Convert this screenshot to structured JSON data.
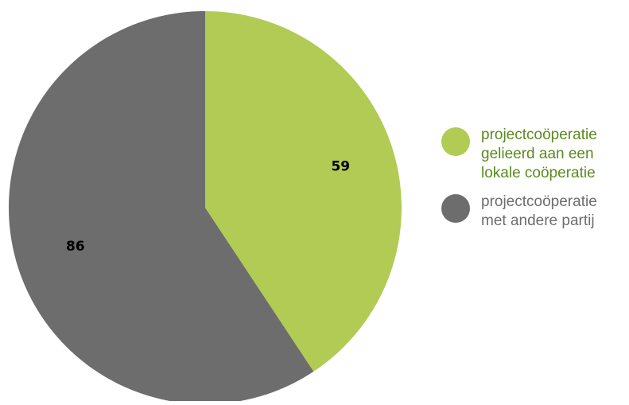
{
  "chart_data": {
    "type": "pie",
    "slices": [
      {
        "label": "projectcoöperatie gelieerd aan een lokale coöperatie",
        "value": 59,
        "value_label": "59",
        "color": "#b1cb55"
      },
      {
        "label": "projectcoöperatie met andere partij",
        "value": 86,
        "value_label": "86",
        "color": "#6d6d6d"
      }
    ],
    "legend_position": "right",
    "start_angle": "top",
    "direction": "clockwise"
  }
}
